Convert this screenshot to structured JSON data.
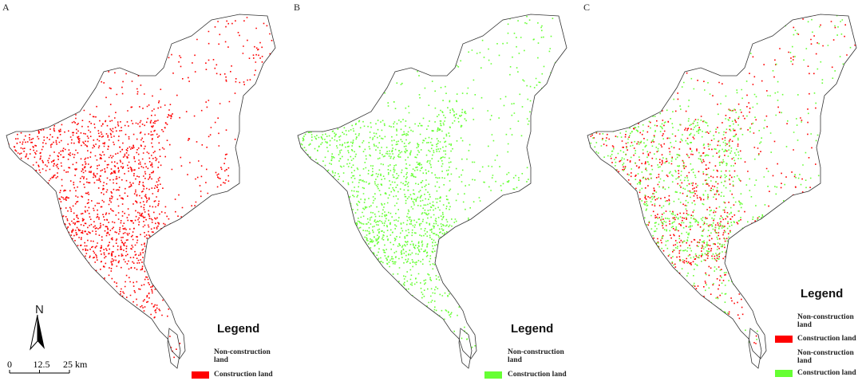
{
  "panels": [
    {
      "label": "A",
      "legend": {
        "title": "Legend",
        "items": [
          {
            "label": "Non-construction land"
          },
          {
            "label": "Construction land",
            "color": "#ff0000"
          }
        ]
      }
    },
    {
      "label": "B",
      "legend": {
        "title": "Legend",
        "items": [
          {
            "label": "Non-construction land"
          },
          {
            "label": "Construction land",
            "color": "#66ff33"
          }
        ]
      }
    },
    {
      "label": "C",
      "legend": {
        "title": "Legend",
        "items": [
          {
            "label": "Non-construction land"
          },
          {
            "label": "Construction land",
            "color": "#ff0000"
          },
          {
            "label": "Non-construction land"
          },
          {
            "label": "Construction land",
            "color": "#66ff33"
          }
        ]
      }
    }
  ],
  "north_arrow": "N",
  "scale_bar": {
    "ticks": [
      0,
      12.5,
      {
        "value": 25,
        "label": "25 km"
      }
    ]
  }
}
